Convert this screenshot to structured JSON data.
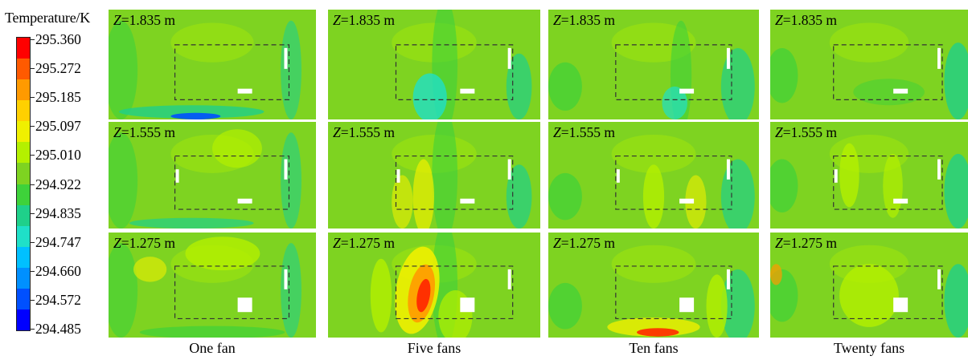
{
  "legend": {
    "title": "Temperature/K",
    "ticks": [
      "295.360",
      "295.272",
      "295.185",
      "295.097",
      "295.010",
      "294.922",
      "294.835",
      "294.747",
      "294.660",
      "294.572",
      "294.485"
    ],
    "colors": [
      "#ff0000",
      "#ff5a00",
      "#ff9a00",
      "#ffd000",
      "#f0f000",
      "#b4f000",
      "#7ed321",
      "#3ed23a",
      "#1fd08a",
      "#1fe0c8",
      "#00c0ff",
      "#0090ff",
      "#0050ff",
      "#0000ff"
    ]
  },
  "columns": [
    "One fan",
    "Five fans",
    "Ten fans",
    "Twenty fans"
  ],
  "rows": [
    {
      "var": "Z",
      "value": "=1.835 m"
    },
    {
      "var": "Z",
      "value": "=1.555 m"
    },
    {
      "var": "Z",
      "value": "=1.275 m"
    }
  ],
  "colors": {
    "base_green": "#7ed321",
    "light_green": "#b4f000",
    "yellow": "#f0f000",
    "orange": "#ff9a00",
    "red": "#ff2a00",
    "green_mid": "#3ed23a",
    "teal": "#1fd08a",
    "cyan": "#1fe0c8",
    "blue": "#0050ff",
    "dash": "#333333"
  }
}
